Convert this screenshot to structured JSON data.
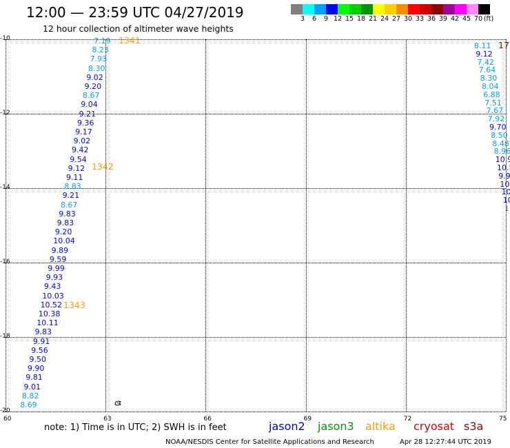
{
  "header": {
    "title": "12:00 — 23:59 UTC 04/27/2019",
    "subtitle": "12 hour collection of altimeter wave heights"
  },
  "legend": {
    "unit": "(ft)",
    "bins": [
      {
        "label": "3",
        "color": "#808080"
      },
      {
        "label": "6",
        "color": "#00ffff"
      },
      {
        "label": "9",
        "color": "#00a0ff"
      },
      {
        "label": "12",
        "color": "#0000ff"
      },
      {
        "label": "15",
        "color": "#00ff00"
      },
      {
        "label": "18",
        "color": "#00d000"
      },
      {
        "label": "21",
        "color": "#009000"
      },
      {
        "label": "24",
        "color": "#ffff00"
      },
      {
        "label": "27",
        "color": "#ffd000"
      },
      {
        "label": "30",
        "color": "#ff8c00"
      },
      {
        "label": "33",
        "color": "#ff0000"
      },
      {
        "label": "36",
        "color": "#d00000"
      },
      {
        "label": "39",
        "color": "#8b0000"
      },
      {
        "label": "42",
        "color": "#a000a0"
      },
      {
        "label": "45",
        "color": "#ff00ff"
      },
      {
        "label": "70",
        "color": "#ff88ff"
      },
      {
        "label": "",
        "color": "#000000"
      }
    ]
  },
  "map": {
    "lat_labels": [
      "-10",
      "-12",
      "-14",
      "-16",
      "-18",
      "-20"
    ],
    "lon_labels": [
      "60",
      "63",
      "66",
      "69",
      "72",
      "75"
    ],
    "lat_range": [
      -20,
      -10
    ],
    "lon_range": [
      60,
      75
    ]
  },
  "passes": {
    "left_track": [
      "7.19",
      "8.23",
      "7.93",
      "8.30",
      "9.02",
      "9.20",
      "8.67",
      "9.04",
      "9.21",
      "9.36",
      "9.17",
      "9.02",
      "9.42",
      "9.54",
      "9.12",
      "9.11",
      "8.83",
      "9.21",
      "8.67",
      "9.83",
      "9.83",
      "9.20",
      "10.04",
      "9.89",
      "9.59",
      "9.99",
      "9.93",
      "9.43",
      "10.03",
      "10.52",
      "10.38",
      "10.11",
      "9.83",
      "9.91",
      "9.56",
      "9.50",
      "9.90",
      "9.81",
      "9.01",
      "8.82",
      "8.69"
    ],
    "right_track": [
      "8.11",
      "9.12",
      "7.42",
      "7.64",
      "8.30",
      "8.04",
      "6.88",
      "7.51",
      "7.67",
      "7.92",
      "9.70",
      "8.50",
      "8.48",
      "8.96",
      "10.9",
      "10.5",
      "9.9",
      "10.",
      "10",
      "10",
      "1"
    ],
    "pass_labels": [
      "1341",
      "1342",
      "1343",
      "17"
    ]
  },
  "footer": {
    "note": "note:  1) Time is in UTC;  2) SWH is in feet",
    "satellites": [
      {
        "name": "jason2",
        "color": "#0000cc"
      },
      {
        "name": "jason3",
        "color": "#009900"
      },
      {
        "name": "altika",
        "color": "#ff9900"
      },
      {
        "name": "cryosat",
        "color": "#dd0000"
      },
      {
        "name": "s3a",
        "color": "#990000"
      }
    ],
    "credit": "NOAA/NESDIS Center for Satellite Applications and Research",
    "timestamp": "Apr 28 12:27:44 UTC 2019"
  }
}
